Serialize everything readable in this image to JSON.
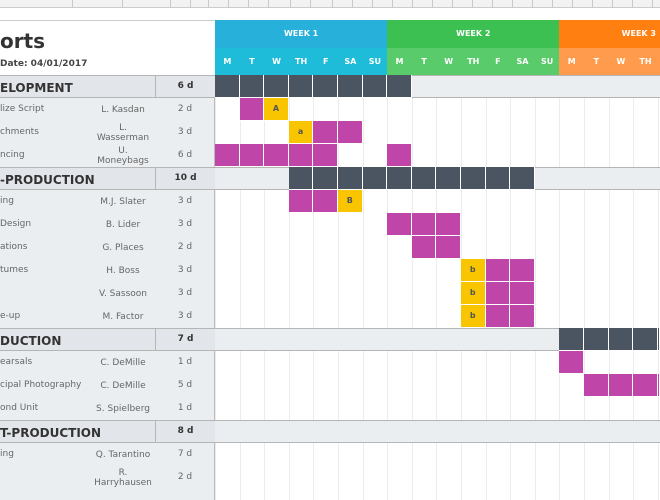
{
  "header": {
    "title": "orts",
    "date_label": "Date: 04/01/2017"
  },
  "weeks": [
    {
      "label": "WEEK 1",
      "color": "#27b0d9",
      "day_color": "#1fbcd9"
    },
    {
      "label": "WEEK 2",
      "color": "#3cc052",
      "day_color": "#5acb6b"
    },
    {
      "label": "WEEK 3",
      "color": "#ff7f10",
      "day_color": "#ff9b4c"
    }
  ],
  "days": [
    "M",
    "T",
    "W",
    "TH",
    "F",
    "SA",
    "SU"
  ],
  "colors": {
    "summary": "#4b5562",
    "task": "#c045a8",
    "milestone": "#f9c500"
  },
  "rows": [
    {
      "type": "group",
      "name": "ELOPMENT",
      "duration": "6 d",
      "bars": [
        {
          "start": 0,
          "days": 8,
          "kind": "summary"
        }
      ]
    },
    {
      "type": "task",
      "name": "lize Script",
      "owner": "L. Kasdan",
      "duration": "2 d",
      "bars": [
        {
          "start": 1,
          "days": 1,
          "kind": "task"
        },
        {
          "start": 2,
          "days": 1,
          "kind": "milestone",
          "label": "A"
        }
      ]
    },
    {
      "type": "task",
      "name": "chments",
      "owner": "L. Wasserman",
      "duration": "3 d",
      "bars": [
        {
          "start": 3,
          "days": 1,
          "kind": "milestone",
          "label": "a"
        },
        {
          "start": 4,
          "days": 2,
          "kind": "task"
        }
      ]
    },
    {
      "type": "task",
      "name": "ncing",
      "owner": "U. Moneybags",
      "duration": "6 d",
      "bars": [
        {
          "start": 0,
          "days": 5,
          "kind": "task"
        },
        {
          "start": 7,
          "days": 1,
          "kind": "task"
        }
      ]
    },
    {
      "type": "group",
      "name": "-PRODUCTION",
      "duration": "10 d",
      "bars": [
        {
          "start": 3,
          "days": 10,
          "kind": "summary"
        }
      ]
    },
    {
      "type": "task",
      "name": "ing",
      "owner": "M.J. Slater",
      "duration": "3 d",
      "bars": [
        {
          "start": 3,
          "days": 2,
          "kind": "task"
        },
        {
          "start": 5,
          "days": 1,
          "kind": "milestone",
          "label": "B"
        }
      ]
    },
    {
      "type": "task",
      "name": "Design",
      "owner": "B. Lider",
      "duration": "3 d",
      "bars": [
        {
          "start": 7,
          "days": 3,
          "kind": "task"
        }
      ]
    },
    {
      "type": "task",
      "name": "ations",
      "owner": "G. Places",
      "duration": "2 d",
      "bars": [
        {
          "start": 8,
          "days": 2,
          "kind": "task"
        }
      ]
    },
    {
      "type": "task",
      "name": "tumes",
      "owner": "H. Boss",
      "duration": "3 d",
      "bars": [
        {
          "start": 10,
          "days": 1,
          "kind": "milestone",
          "label": "b"
        },
        {
          "start": 11,
          "days": 2,
          "kind": "task"
        }
      ]
    },
    {
      "type": "task",
      "name": "",
      "owner": "V. Sassoon",
      "duration": "3 d",
      "bars": [
        {
          "start": 10,
          "days": 1,
          "kind": "milestone",
          "label": "b"
        },
        {
          "start": 11,
          "days": 2,
          "kind": "task"
        }
      ]
    },
    {
      "type": "task",
      "name": "e-up",
      "owner": "M. Factor",
      "duration": "3 d",
      "bars": [
        {
          "start": 10,
          "days": 1,
          "kind": "milestone",
          "label": "b"
        },
        {
          "start": 11,
          "days": 2,
          "kind": "task"
        }
      ]
    },
    {
      "type": "group",
      "name": "DUCTION",
      "duration": "7 d",
      "bars": [
        {
          "start": 14,
          "days": 7,
          "kind": "summary"
        }
      ]
    },
    {
      "type": "task",
      "name": "earsals",
      "owner": "C. DeMille",
      "duration": "1 d",
      "bars": [
        {
          "start": 14,
          "days": 1,
          "kind": "task"
        }
      ]
    },
    {
      "type": "task",
      "name": "cipal Photography",
      "owner": "C. DeMille",
      "duration": "5 d",
      "bars": [
        {
          "start": 15,
          "days": 5,
          "kind": "task"
        }
      ]
    },
    {
      "type": "task",
      "name": "ond Unit",
      "owner": "S. Spielberg",
      "duration": "1 d",
      "bars": []
    },
    {
      "type": "group",
      "name": "T-PRODUCTION",
      "duration": "8 d",
      "bars": []
    },
    {
      "type": "task",
      "name": "ing",
      "owner": "Q. Tarantino",
      "duration": "7 d",
      "bars": []
    },
    {
      "type": "task",
      "name": "",
      "owner": "R. Harryhausen",
      "duration": "2 d",
      "bars": []
    }
  ]
}
